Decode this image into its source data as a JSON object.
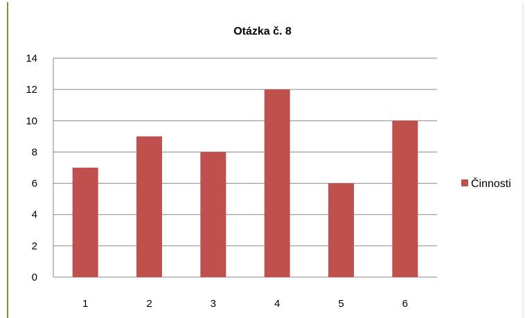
{
  "chart_data": {
    "type": "bar",
    "title": "Otázka č. 8",
    "categories": [
      "1",
      "2",
      "3",
      "4",
      "5",
      "6"
    ],
    "series": [
      {
        "name": "Činnosti",
        "values": [
          7,
          9,
          8,
          12,
          6,
          10
        ],
        "color": "#C0504D"
      }
    ],
    "ylim": [
      0,
      14
    ],
    "yticks": [
      "0",
      "2",
      "4",
      "6",
      "8",
      "10",
      "12",
      "14"
    ],
    "grid": true,
    "legend_position": "right"
  },
  "colors": {
    "bar": "#C0504D",
    "gridline": "#868686",
    "axis": "#868686",
    "frame_left": "#8C8C2E",
    "frame_right": "#D9D9D9"
  }
}
